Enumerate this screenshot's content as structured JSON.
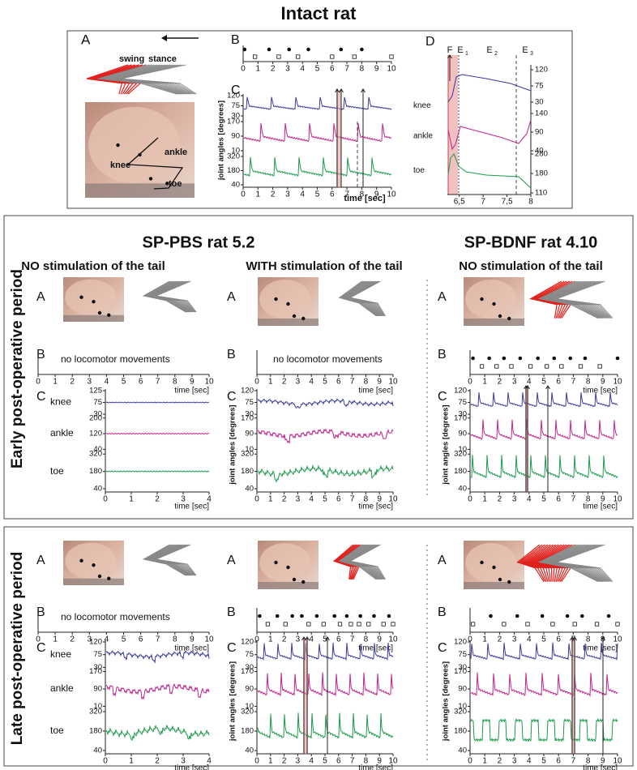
{
  "title": "Intact rat",
  "intact": {
    "a": "A",
    "b": "B",
    "c": "C",
    "d": "D",
    "swing": "swing",
    "stance": "stance",
    "photo_labels": [
      "knee",
      "ankle",
      "toe"
    ],
    "b_xticks": [
      0,
      1,
      2,
      3,
      4,
      5,
      6,
      7,
      8,
      9,
      10
    ],
    "b_swing": [
      0.1,
      1.75,
      3.1,
      4.4,
      6.6,
      8.0
    ],
    "b_stance": [
      0.8,
      2.4,
      3.7,
      6.0,
      7.5,
      10
    ],
    "joints": [
      "knee",
      "ankle",
      "toe"
    ],
    "c_yticks": [
      [
        120,
        75,
        30
      ],
      [
        170,
        90,
        10
      ],
      [
        320,
        180,
        40
      ]
    ],
    "c_xticks": [
      0,
      1,
      2,
      3,
      4,
      5,
      6,
      7,
      8,
      9,
      10
    ],
    "c_xlabel": "time [sec]",
    "ylabel": "joint angles [degrees]",
    "d_events": [
      {
        "letter": "F"
      },
      {
        "letter": "E",
        "sub": "1"
      },
      {
        "letter": "E",
        "sub": "2"
      },
      {
        "letter": "E",
        "sub": "3"
      }
    ],
    "d_yticks": [
      [
        120,
        75,
        30
      ],
      [
        140,
        90,
        40
      ],
      [
        280,
        180,
        110
      ]
    ],
    "d_xlim": [
      6.25,
      8
    ],
    "d_xticks": [
      {
        "value": 6.5,
        "label": "6,5"
      },
      7,
      {
        "value": 7.5,
        "label": "7,5"
      },
      8
    ]
  },
  "groups": [
    "SP-PBS rat 5.2",
    "SP-BDNF rat 4.10"
  ],
  "conditions": [
    "NO stimulation of the tail",
    "WITH stimulation of the tail",
    "NO stimulation of the tail"
  ],
  "rows": [
    {
      "period": "Early post-operative period",
      "panels": [
        {
          "a": "A",
          "b": "B",
          "c": "C",
          "note": "no locomotor movements",
          "b_xticks": [
            0,
            1,
            2,
            3,
            4,
            5,
            6,
            7,
            8,
            9,
            10
          ],
          "b_xlabel": "time [sec]",
          "joints": [
            "knee",
            "ankle",
            "toe"
          ],
          "c_yticks": [
            [
              125,
              75,
              30
            ],
            [
              200,
              120,
              40
            ],
            [
              320,
              180,
              40
            ]
          ],
          "c_xticks": [
            0,
            1,
            2,
            3,
            4
          ],
          "c_xlabel": "time [sec]"
        },
        {
          "a": "A",
          "b": "B",
          "c": "C",
          "note": "no locomotor movements",
          "b_xticks": [
            0,
            1,
            2,
            3,
            4,
            5,
            6,
            7,
            8,
            9,
            10
          ],
          "b_xlabel": "time [sec]",
          "ylabel": "joint angles [degrees]",
          "c_yticks": [
            [
              120,
              75,
              30
            ],
            [
              170,
              90,
              10
            ],
            [
              320,
              180,
              40
            ]
          ],
          "c_xticks": [
            0,
            1,
            2,
            3,
            4,
            5,
            6,
            7,
            8,
            9,
            10
          ],
          "c_xlabel": "time [sec]"
        },
        {
          "a": "A",
          "b": "B",
          "c": "C",
          "b_xticks": [
            0,
            1,
            2,
            3,
            4,
            5,
            6,
            7,
            8,
            9,
            10
          ],
          "b_xlabel": "time [sec]",
          "b_swing": [
            0.2,
            1.3,
            2.3,
            3.4,
            4.6,
            5.7,
            6.8,
            7.8,
            10
          ],
          "b_stance": [
            0.8,
            1.8,
            2.8,
            4.1,
            5.2,
            6.2,
            7.5,
            8.8
          ],
          "ylabel": "joint angles [degrees]",
          "c_yticks": [
            [
              120,
              75,
              30
            ],
            [
              170,
              90,
              10
            ],
            [
              320,
              180,
              40
            ]
          ],
          "c_xticks": [
            0,
            1,
            2,
            3,
            4,
            5,
            6,
            7,
            8,
            9,
            10
          ],
          "c_xlabel": "time [sec]"
        }
      ]
    },
    {
      "period": "Late post-operative period",
      "panels": [
        {
          "a": "A",
          "b": "B",
          "c": "C",
          "note": "no locomotor movements",
          "b_xticks": [
            0,
            1,
            2,
            3,
            4,
            5,
            6,
            7,
            8,
            9,
            10
          ],
          "b_xlabel": "time [sec]",
          "joints": [
            "knee",
            "ankle",
            "toe"
          ],
          "c_yticks": [
            [
              120,
              75,
              30
            ],
            [
              170,
              90,
              10
            ],
            [
              320,
              180,
              40
            ]
          ],
          "c_xticks": [
            0,
            1,
            2,
            3,
            4
          ],
          "c_xlabel": "time [sec]"
        },
        {
          "a": "A",
          "b": "B",
          "c": "C",
          "b_xticks": [
            0,
            1,
            2,
            3,
            4,
            5,
            6,
            7,
            8,
            9,
            10
          ],
          "b_xlabel": "time [sec]",
          "b_swing": [
            0.2,
            1.5,
            2.6,
            3.3,
            4.4,
            5.7,
            6.6,
            7.6,
            8.6,
            9.7
          ],
          "b_stance": [
            0.8,
            2.1,
            3.8,
            4.9,
            6.1,
            6.9,
            7.5,
            8.2,
            9.3,
            10
          ],
          "ylabel": "joint angles [degrees]",
          "c_yticks": [
            [
              120,
              75,
              30
            ],
            [
              170,
              90,
              10
            ],
            [
              320,
              180,
              40
            ]
          ],
          "c_xticks": [
            0,
            1,
            2,
            3,
            4,
            5,
            6,
            7,
            8,
            9,
            10
          ],
          "c_xlabel": "time [sec]"
        },
        {
          "a": "A",
          "b": "B",
          "c": "C",
          "b_xticks": [
            0,
            1,
            2,
            3,
            4,
            5,
            6,
            7,
            8,
            9,
            10
          ],
          "b_xlabel": "time [sec]",
          "b_swing": [
            1.4,
            3.2,
            4.9,
            6.6,
            7.6,
            9.4
          ],
          "b_stance": [
            0.2,
            2.3,
            3.9,
            5.6,
            7.1,
            8.6,
            10
          ],
          "ylabel": "joint angles [degrees]",
          "c_yticks": [
            [
              120,
              75,
              30
            ],
            [
              170,
              90,
              10
            ],
            [
              320,
              180,
              40
            ]
          ],
          "c_xticks": [
            0,
            1,
            2,
            3,
            4,
            5,
            6,
            7,
            8,
            9,
            10
          ],
          "c_xlabel": "time [sec]"
        }
      ]
    }
  ]
}
